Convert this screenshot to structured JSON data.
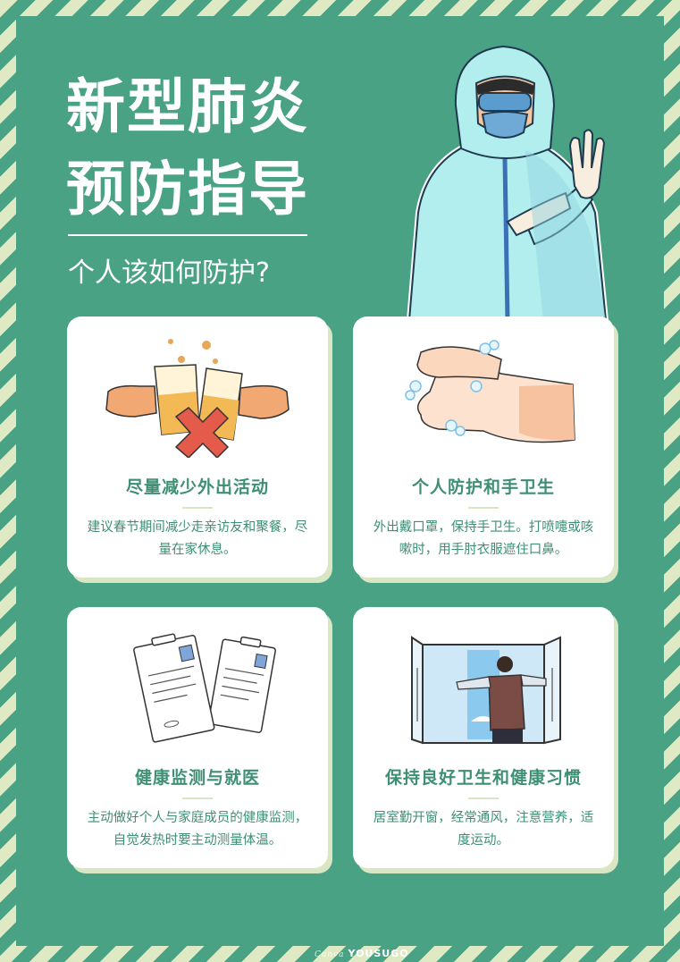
{
  "header": {
    "title_line1": "新型肺炎",
    "title_line2": "预防指导",
    "subtitle": "个人该如何防护?"
  },
  "cards": [
    {
      "title": "尽量减少外出活动",
      "body": "建议春节期间减少走亲访友和聚餐，尽量在家休息。",
      "icon": "no-gathering-icon"
    },
    {
      "title": "个人防护和手卫生",
      "body": "外出戴口罩，保持手卫生。打喷嚏或咳嗽时，用手肘衣服遮住口鼻。",
      "icon": "hand-washing-icon"
    },
    {
      "title": "健康监测与就医",
      "body": "主动做好个人与家庭成员的健康监测，自觉发热时要主动测量体温。",
      "icon": "health-record-icon"
    },
    {
      "title": "保持良好卫生和健康习惯",
      "body": "居室勤开窗，经常通风，注意营养，适度运动。",
      "icon": "open-window-icon"
    }
  ],
  "watermark": {
    "script": "Canva",
    "text": "YOUSUGO"
  },
  "colors": {
    "background": "#4aa284",
    "stripe": "#dfe9c4",
    "text_green": "#3e8f73",
    "card": "#ffffff"
  }
}
